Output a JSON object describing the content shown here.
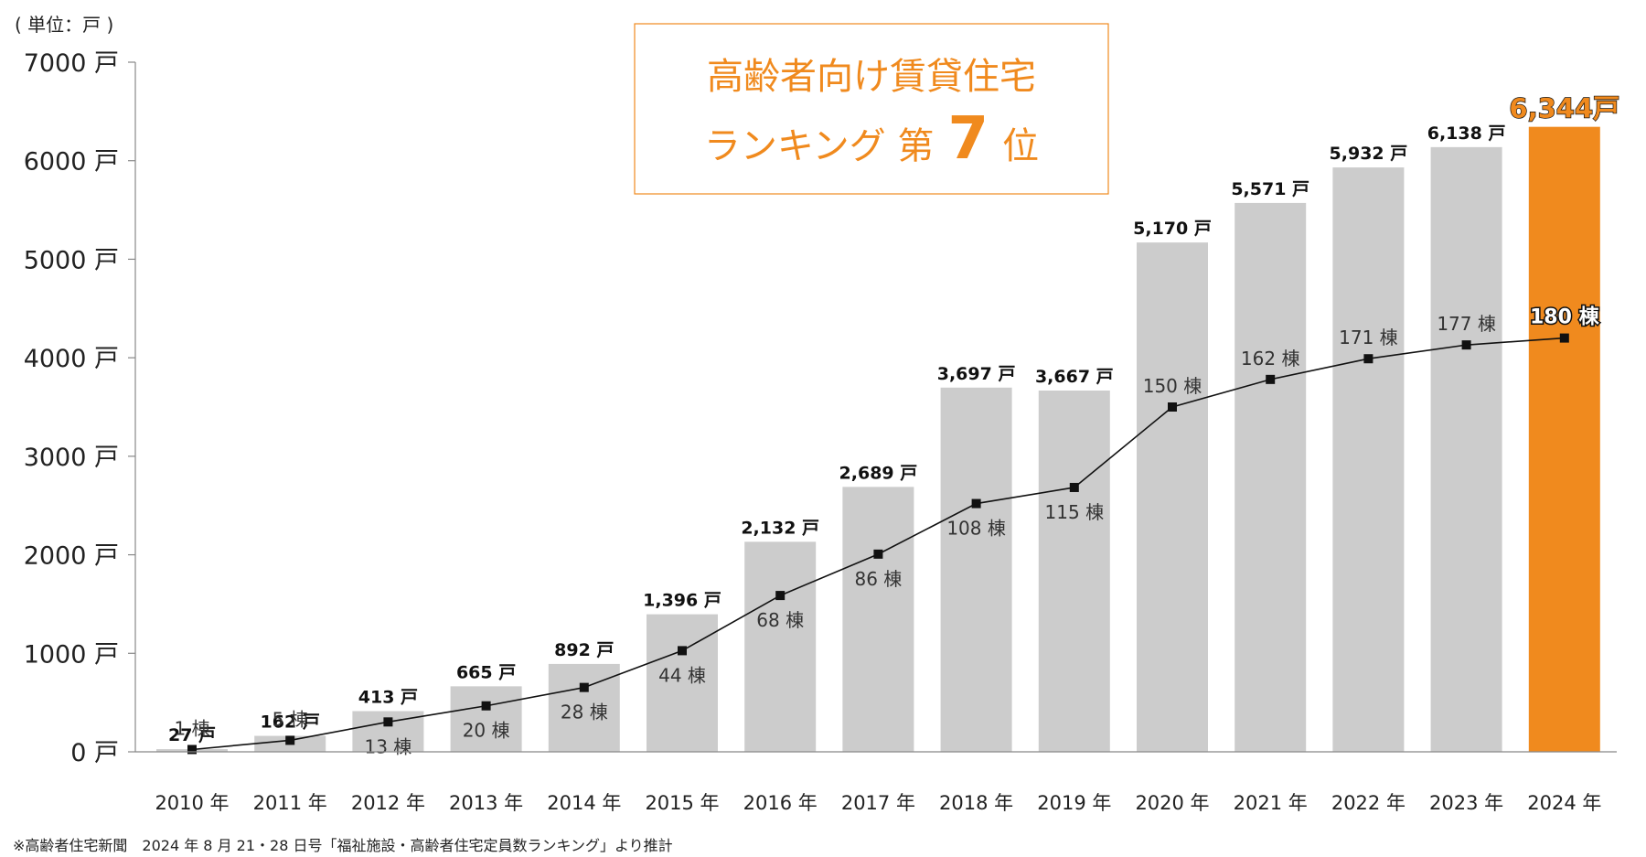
{
  "unit_note": "( 単位：戸 )",
  "ranking_box": {
    "line1": "高齢者向け賃貸住宅",
    "line2_prefix": "ランキング 第",
    "rank": "7",
    "line2_suffix": "位"
  },
  "footnote": "※高齢者住宅新聞　2024 年 8 月 21・28 日号「福祉施設・高齢者住宅定員数ランキング」より推計",
  "colors": {
    "bar": "#cccccc",
    "highlight_bar": "#f08a1e",
    "line": "#111111",
    "axis": "#888888",
    "title": "#f08a1e"
  },
  "chart_data": {
    "type": "bar",
    "title": "",
    "xlabel": "",
    "ylabel": "",
    "ylim": [
      0,
      7000
    ],
    "grid": false,
    "y_ticks": [
      0,
      1000,
      2000,
      3000,
      4000,
      5000,
      6000,
      7000
    ],
    "y_tick_labels": [
      "0 戸",
      "1000 戸",
      "2000 戸",
      "3000 戸",
      "4000 戸",
      "5000 戸",
      "6000 戸",
      "7000 戸"
    ],
    "categories": [
      "2010 年",
      "2011 年",
      "2012 年",
      "2013 年",
      "2014 年",
      "2015 年",
      "2016 年",
      "2017 年",
      "2018 年",
      "2019 年",
      "2020 年",
      "2021 年",
      "2022 年",
      "2023 年",
      "2024 年"
    ],
    "series": [
      {
        "type": "bar",
        "values": [
          27,
          162,
          413,
          665,
          892,
          1396,
          2132,
          2689,
          3697,
          3667,
          5170,
          5571,
          5932,
          6138,
          6344
        ],
        "labels": [
          "27 戸",
          "162 戸",
          "413 戸",
          "665 戸",
          "892 戸",
          "1,396 戸",
          "2,132 戸",
          "2,689 戸",
          "3,697 戸",
          "3,667 戸",
          "5,170 戸",
          "5,571 戸",
          "5,932 戸",
          "6,138 戸",
          "6,344戸"
        ],
        "highlight_index": 14
      },
      {
        "type": "line",
        "values": [
          1,
          5,
          13,
          20,
          28,
          44,
          68,
          86,
          108,
          115,
          150,
          162,
          171,
          177,
          180
        ],
        "labels": [
          "1 棟",
          "5 棟",
          "13 棟",
          "20 棟",
          "28 棟",
          "44 棟",
          "68 棟",
          "86 棟",
          "108 棟",
          "115 棟",
          "150 棟",
          "162 棟",
          "171 棟",
          "177 棟",
          "180 棟"
        ],
        "secondary_axis_ylim": [
          0,
          300
        ]
      }
    ]
  }
}
